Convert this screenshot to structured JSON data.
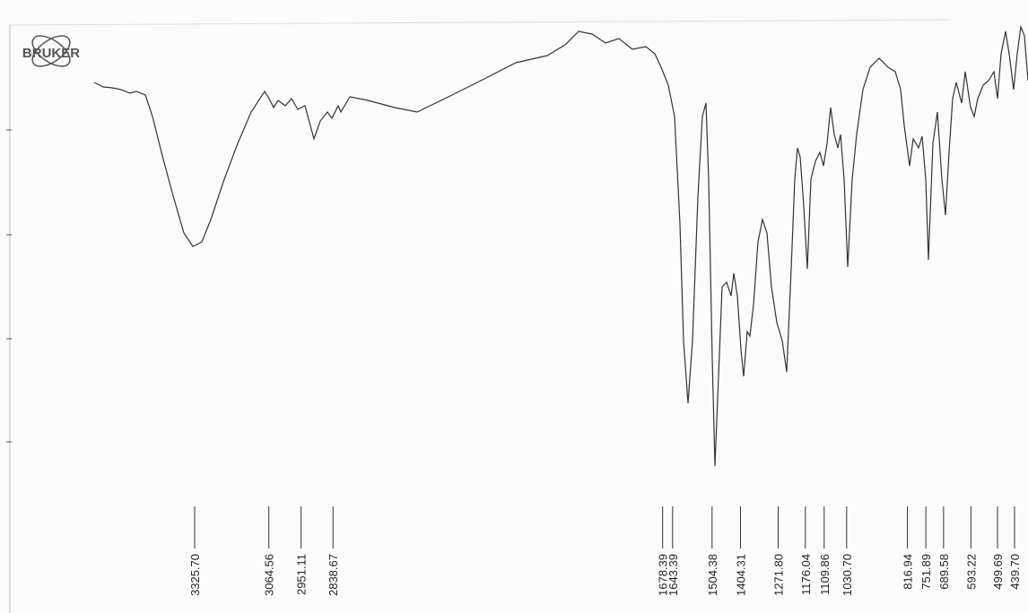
{
  "chart_data": {
    "type": "spectrum",
    "logo": "BRUKER",
    "peaks": [
      {
        "value": 3325.7,
        "label": "3325.70"
      },
      {
        "value": 3064.56,
        "label": "3064.56"
      },
      {
        "value": 2951.11,
        "label": "2951.11"
      },
      {
        "value": 2838.67,
        "label": "2838.67"
      },
      {
        "value": 1678.39,
        "label": "1678.39"
      },
      {
        "value": 1643.39,
        "label": "1643.39"
      },
      {
        "value": 1504.38,
        "label": "1504.38"
      },
      {
        "value": 1404.31,
        "label": "1404.31"
      },
      {
        "value": 1271.8,
        "label": "1271.80"
      },
      {
        "value": 1176.04,
        "label": "1176.04"
      },
      {
        "value": 1109.86,
        "label": "1109.86"
      },
      {
        "value": 1030.7,
        "label": "1030.70"
      },
      {
        "value": 816.94,
        "label": "816.94"
      },
      {
        "value": 751.89,
        "label": "751.89"
      },
      {
        "value": 689.58,
        "label": "689.58"
      },
      {
        "value": 593.22,
        "label": "593.22"
      },
      {
        "value": 499.69,
        "label": "499.69"
      },
      {
        "value": 439.7,
        "label": "439.70"
      }
    ],
    "color": "#333333"
  }
}
